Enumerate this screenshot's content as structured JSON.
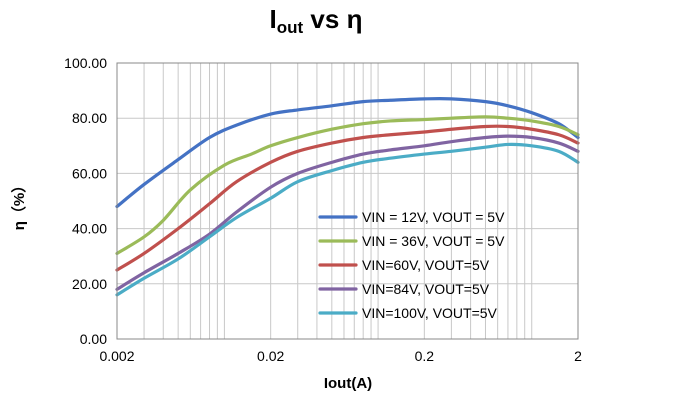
{
  "chart_data": {
    "type": "line",
    "title": {
      "main": "I",
      "sub": "out",
      "rest": " vs η"
    },
    "xlabel": "Iout(A)",
    "ylabel": "η（%）",
    "x_scale": "log",
    "xlim": [
      0.002,
      2
    ],
    "ylim": [
      0,
      100
    ],
    "x_ticks": [
      0.002,
      0.02,
      0.2,
      2
    ],
    "x_tick_labels": [
      "0.002",
      "0.02",
      "0.2",
      "2"
    ],
    "y_ticks": [
      0,
      20,
      40,
      60,
      80,
      100
    ],
    "y_tick_labels": [
      "0.00",
      "20.00",
      "40.00",
      "60.00",
      "80.00",
      "100.00"
    ],
    "grid": true,
    "legend_position": "bottom-right inside",
    "series": [
      {
        "name": "VIN = 12V, VOUT = 5V",
        "color": "#4472C4",
        "points": [
          [
            0.002,
            48
          ],
          [
            0.003,
            56
          ],
          [
            0.005,
            65
          ],
          [
            0.008,
            73
          ],
          [
            0.012,
            77.5
          ],
          [
            0.02,
            81.5
          ],
          [
            0.03,
            83
          ],
          [
            0.05,
            84.5
          ],
          [
            0.08,
            86
          ],
          [
            0.12,
            86.5
          ],
          [
            0.2,
            87
          ],
          [
            0.3,
            87
          ],
          [
            0.5,
            86
          ],
          [
            0.7,
            84.5
          ],
          [
            1.0,
            82
          ],
          [
            1.5,
            78
          ],
          [
            2.0,
            73
          ]
        ]
      },
      {
        "name": "VIN = 36V, VOUT = 5V",
        "color": "#9BBB59",
        "points": [
          [
            0.002,
            31
          ],
          [
            0.003,
            37
          ],
          [
            0.004,
            43
          ],
          [
            0.006,
            54
          ],
          [
            0.01,
            63
          ],
          [
            0.015,
            67
          ],
          [
            0.02,
            70
          ],
          [
            0.03,
            73
          ],
          [
            0.05,
            76
          ],
          [
            0.08,
            78
          ],
          [
            0.12,
            79
          ],
          [
            0.2,
            79.5
          ],
          [
            0.3,
            80
          ],
          [
            0.5,
            80.5
          ],
          [
            0.7,
            80
          ],
          [
            1.0,
            79
          ],
          [
            1.5,
            77
          ],
          [
            2.0,
            74
          ]
        ]
      },
      {
        "name": "VIN=60V, VOUT=5V",
        "color": "#C0504D",
        "points": [
          [
            0.002,
            25
          ],
          [
            0.003,
            31
          ],
          [
            0.005,
            40
          ],
          [
            0.008,
            49
          ],
          [
            0.012,
            57
          ],
          [
            0.02,
            64
          ],
          [
            0.03,
            68
          ],
          [
            0.05,
            71
          ],
          [
            0.08,
            73
          ],
          [
            0.12,
            74
          ],
          [
            0.2,
            75
          ],
          [
            0.3,
            76
          ],
          [
            0.5,
            77
          ],
          [
            0.7,
            77
          ],
          [
            1.0,
            76
          ],
          [
            1.5,
            74
          ],
          [
            2.0,
            71
          ]
        ]
      },
      {
        "name": "VIN=84V, VOUT=5V",
        "color": "#8064A2",
        "points": [
          [
            0.002,
            18
          ],
          [
            0.003,
            24
          ],
          [
            0.005,
            31
          ],
          [
            0.008,
            38
          ],
          [
            0.012,
            46
          ],
          [
            0.02,
            55
          ],
          [
            0.03,
            60
          ],
          [
            0.05,
            64
          ],
          [
            0.08,
            67
          ],
          [
            0.12,
            68.5
          ],
          [
            0.2,
            70
          ],
          [
            0.3,
            71.5
          ],
          [
            0.5,
            73
          ],
          [
            0.7,
            73.5
          ],
          [
            1.0,
            73
          ],
          [
            1.5,
            71
          ],
          [
            2.0,
            68
          ]
        ]
      },
      {
        "name": "VIN=100V, VOUT=5V",
        "color": "#4BACC6",
        "points": [
          [
            0.002,
            16
          ],
          [
            0.003,
            22
          ],
          [
            0.005,
            29
          ],
          [
            0.008,
            37
          ],
          [
            0.012,
            44
          ],
          [
            0.02,
            51
          ],
          [
            0.03,
            57
          ],
          [
            0.05,
            61
          ],
          [
            0.08,
            64
          ],
          [
            0.12,
            65.5
          ],
          [
            0.2,
            67
          ],
          [
            0.3,
            68
          ],
          [
            0.5,
            69.5
          ],
          [
            0.7,
            70.5
          ],
          [
            1.0,
            70
          ],
          [
            1.5,
            68
          ],
          [
            2.0,
            64
          ]
        ]
      }
    ]
  }
}
